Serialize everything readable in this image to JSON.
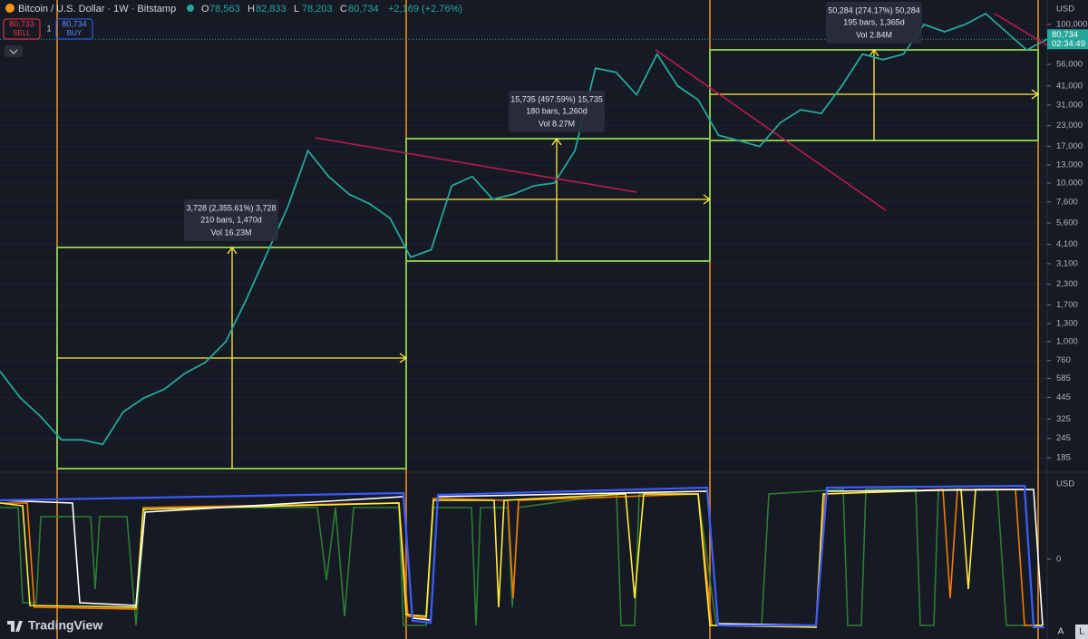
{
  "header": {
    "symbol": "Bitcoin / U.S. Dollar · 1W · Bitstamp",
    "ohlc": [
      {
        "label": "O",
        "value": "78,563"
      },
      {
        "label": "H",
        "value": "82,833"
      },
      {
        "label": "L",
        "value": "78,203"
      },
      {
        "label": "C",
        "value": "80,734"
      }
    ],
    "change": "+2,169 (+2.76%)"
  },
  "trade": {
    "sell_price": "80,733",
    "sell": "SELL",
    "quantity": "1",
    "buy_price": "80,734",
    "buy": "BUY"
  },
  "price_axis": {
    "currency": "USD",
    "scale": "log",
    "ylim": [
      152,
      142700
    ],
    "ticks": [
      {
        "value": 100000,
        "label": "100,000"
      },
      {
        "value": 56000,
        "label": "56,000"
      },
      {
        "value": 41000,
        "label": "41,000"
      },
      {
        "value": 31000,
        "label": "31,000"
      },
      {
        "value": 23000,
        "label": "23,000"
      },
      {
        "value": 17000,
        "label": "17,000"
      },
      {
        "value": 13000,
        "label": "13,000"
      },
      {
        "value": 10000,
        "label": "10,000"
      },
      {
        "value": 7600,
        "label": "7,600"
      },
      {
        "value": 5600,
        "label": "5,600"
      },
      {
        "value": 4100,
        "label": "4,100"
      },
      {
        "value": 3100,
        "label": "3,100"
      },
      {
        "value": 2300,
        "label": "2,300"
      },
      {
        "value": 1700,
        "label": "1,700"
      },
      {
        "value": 1300,
        "label": "1,300"
      },
      {
        "value": 1000,
        "label": "1,000"
      },
      760,
      585,
      445,
      325,
      245,
      185
    ],
    "grid": true,
    "last_price": {
      "value": 80734,
      "label": "80,734"
    },
    "countdown": "02:34:49"
  },
  "price_path": {
    "color": "#26a69a",
    "values": [
      650,
      440,
      335,
      240,
      240,
      225,
      360,
      440,
      500,
      630,
      740,
      1000,
      1850,
      3600,
      7000,
      16000,
      11000,
      8500,
      7400,
      6000,
      3400,
      3800,
      9600,
      11000,
      7900,
      8500,
      9600,
      10000,
      16000,
      53000,
      50000,
      36000,
      65000,
      41000,
      33500,
      20000,
      18500,
      17000,
      24000,
      29000,
      27500,
      41000,
      65000,
      60000,
      65000,
      100000,
      90000,
      100000,
      117000,
      90000,
      69000,
      80734
    ]
  },
  "measurements": [
    {
      "change": "3,728 (2,355.61%) 3,728",
      "bars": "210 bars, 1,470d",
      "volume": "Vol 16.23M"
    },
    {
      "change": "15,735 (497.59%) 15,735",
      "bars": "180 bars, 1,260d",
      "volume": "Vol 8.27M"
    },
    {
      "change": "50,284 (274.17%) 50,284",
      "bars": "195 bars, 1,365d",
      "volume": "Vol 2.84M"
    }
  ],
  "oscillator": {
    "currency": "USD",
    "zero_label": "0"
  },
  "footer": {
    "logo": "TradingView",
    "buttons": [
      "A",
      "L"
    ]
  }
}
